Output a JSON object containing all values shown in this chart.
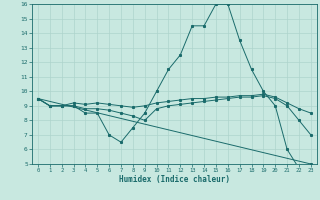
{
  "title": "",
  "xlabel": "Humidex (Indice chaleur)",
  "ylabel": "",
  "bg_color": "#c8e8e0",
  "line_color": "#1a6b6b",
  "grid_color": "#aed4cc",
  "xlim": [
    -0.5,
    23.5
  ],
  "ylim": [
    5,
    16
  ],
  "xticks": [
    0,
    1,
    2,
    3,
    4,
    5,
    6,
    7,
    8,
    9,
    10,
    11,
    12,
    13,
    14,
    15,
    16,
    17,
    18,
    19,
    20,
    21,
    22,
    23
  ],
  "yticks": [
    5,
    6,
    7,
    8,
    9,
    10,
    11,
    12,
    13,
    14,
    15,
    16
  ],
  "series": [
    {
      "x": [
        0,
        1,
        2,
        3,
        4,
        5,
        6,
        7,
        8,
        9,
        10,
        11,
        12,
        13,
        14,
        15,
        16,
        17,
        18,
        19,
        20,
        21,
        22,
        23
      ],
      "y": [
        9.5,
        9.0,
        9.0,
        9.0,
        8.5,
        8.5,
        7.0,
        6.5,
        7.5,
        8.5,
        10.0,
        11.5,
        12.5,
        14.5,
        14.5,
        16.0,
        16.0,
        13.5,
        11.5,
        10.0,
        9.0,
        6.0,
        4.7,
        5.0
      ],
      "markers": true
    },
    {
      "x": [
        0,
        1,
        2,
        3,
        4,
        5,
        6,
        7,
        8,
        9,
        10,
        11,
        12,
        13,
        14,
        15,
        16,
        17,
        18,
        19,
        20,
        21,
        22,
        23
      ],
      "y": [
        9.5,
        9.0,
        9.0,
        9.2,
        9.1,
        9.2,
        9.1,
        9.0,
        8.9,
        9.0,
        9.2,
        9.3,
        9.4,
        9.5,
        9.5,
        9.6,
        9.6,
        9.7,
        9.7,
        9.8,
        9.6,
        9.2,
        8.8,
        8.5
      ],
      "markers": true
    },
    {
      "x": [
        0,
        1,
        2,
        3,
        4,
        5,
        6,
        7,
        8,
        9,
        10,
        11,
        12,
        13,
        14,
        15,
        16,
        17,
        18,
        19,
        20,
        21,
        22,
        23
      ],
      "y": [
        9.5,
        9.0,
        9.0,
        9.0,
        8.8,
        8.8,
        8.7,
        8.5,
        8.3,
        8.0,
        8.8,
        9.0,
        9.1,
        9.2,
        9.3,
        9.4,
        9.5,
        9.6,
        9.6,
        9.7,
        9.5,
        9.0,
        8.0,
        7.0
      ],
      "markers": true
    },
    {
      "x": [
        0,
        23
      ],
      "y": [
        9.5,
        5.0
      ],
      "markers": false
    }
  ]
}
